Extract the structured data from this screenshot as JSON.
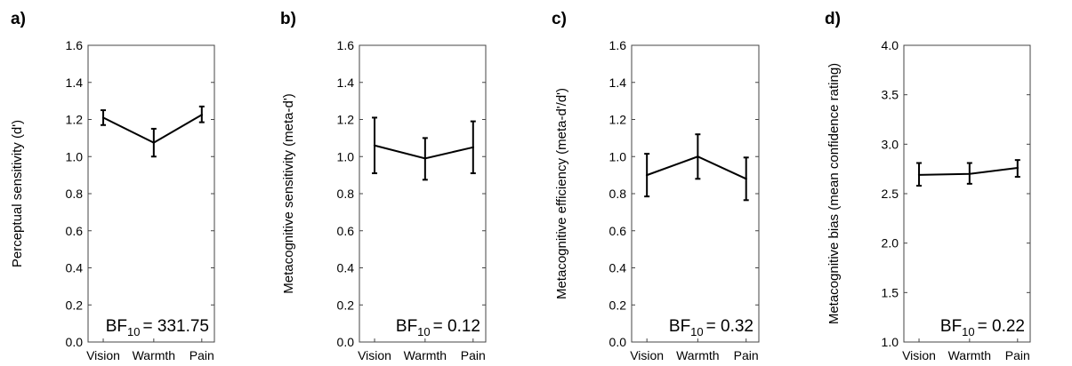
{
  "chart_data": [
    {
      "type": "line",
      "panel_label": "a)",
      "categories": [
        "Vision",
        "Warmth",
        "Pain"
      ],
      "values": [
        1.21,
        1.075,
        1.225
      ],
      "error_low": [
        1.17,
        1.0,
        1.185
      ],
      "error_high": [
        1.25,
        1.15,
        1.27
      ],
      "ylabel": "Perceptual sensitivity (d')",
      "ylim": [
        0.0,
        1.6
      ],
      "yticks": [
        "0.0",
        "0.2",
        "0.4",
        "0.6",
        "0.8",
        "1.0",
        "1.2",
        "1.4",
        "1.6"
      ],
      "bf_prefix": "BF",
      "bf_sub": "10",
      "bf_value": "= 331.75",
      "grid": false
    },
    {
      "type": "line",
      "panel_label": "b)",
      "categories": [
        "Vision",
        "Warmth",
        "Pain"
      ],
      "values": [
        1.06,
        0.99,
        1.05
      ],
      "error_low": [
        0.91,
        0.875,
        0.91
      ],
      "error_high": [
        1.21,
        1.1,
        1.19
      ],
      "ylabel": "Metacognitive sensitivity (meta-d')",
      "ylim": [
        0.0,
        1.6
      ],
      "yticks": [
        "0.0",
        "0.2",
        "0.4",
        "0.6",
        "0.8",
        "1.0",
        "1.2",
        "1.4",
        "1.6"
      ],
      "bf_prefix": "BF",
      "bf_sub": "10",
      "bf_value": "= 0.12",
      "grid": false
    },
    {
      "type": "line",
      "panel_label": "c)",
      "categories": [
        "Vision",
        "Warmth",
        "Pain"
      ],
      "values": [
        0.9,
        1.0,
        0.88
      ],
      "error_low": [
        0.785,
        0.88,
        0.765
      ],
      "error_high": [
        1.015,
        1.12,
        0.995
      ],
      "ylabel": "Metacognitive efficiency (meta-d'/d')",
      "ylim": [
        0.0,
        1.6
      ],
      "yticks": [
        "0.0",
        "0.2",
        "0.4",
        "0.6",
        "0.8",
        "1.0",
        "1.2",
        "1.4",
        "1.6"
      ],
      "bf_prefix": "BF",
      "bf_sub": "10",
      "bf_value": "= 0.32",
      "grid": false
    },
    {
      "type": "line",
      "panel_label": "d)",
      "categories": [
        "Vision",
        "Warmth",
        "Pain"
      ],
      "values": [
        2.69,
        2.7,
        2.76
      ],
      "error_low": [
        2.58,
        2.6,
        2.67
      ],
      "error_high": [
        2.81,
        2.81,
        2.84
      ],
      "ylabel": "Metacognitive bias (mean confidence rating)",
      "ylim": [
        1.0,
        4.0
      ],
      "yticks": [
        "1.0",
        "1.5",
        "2.0",
        "2.5",
        "3.0",
        "3.5",
        "4.0"
      ],
      "bf_prefix": "BF",
      "bf_sub": "10",
      "bf_value": "= 0.22",
      "grid": false
    }
  ]
}
